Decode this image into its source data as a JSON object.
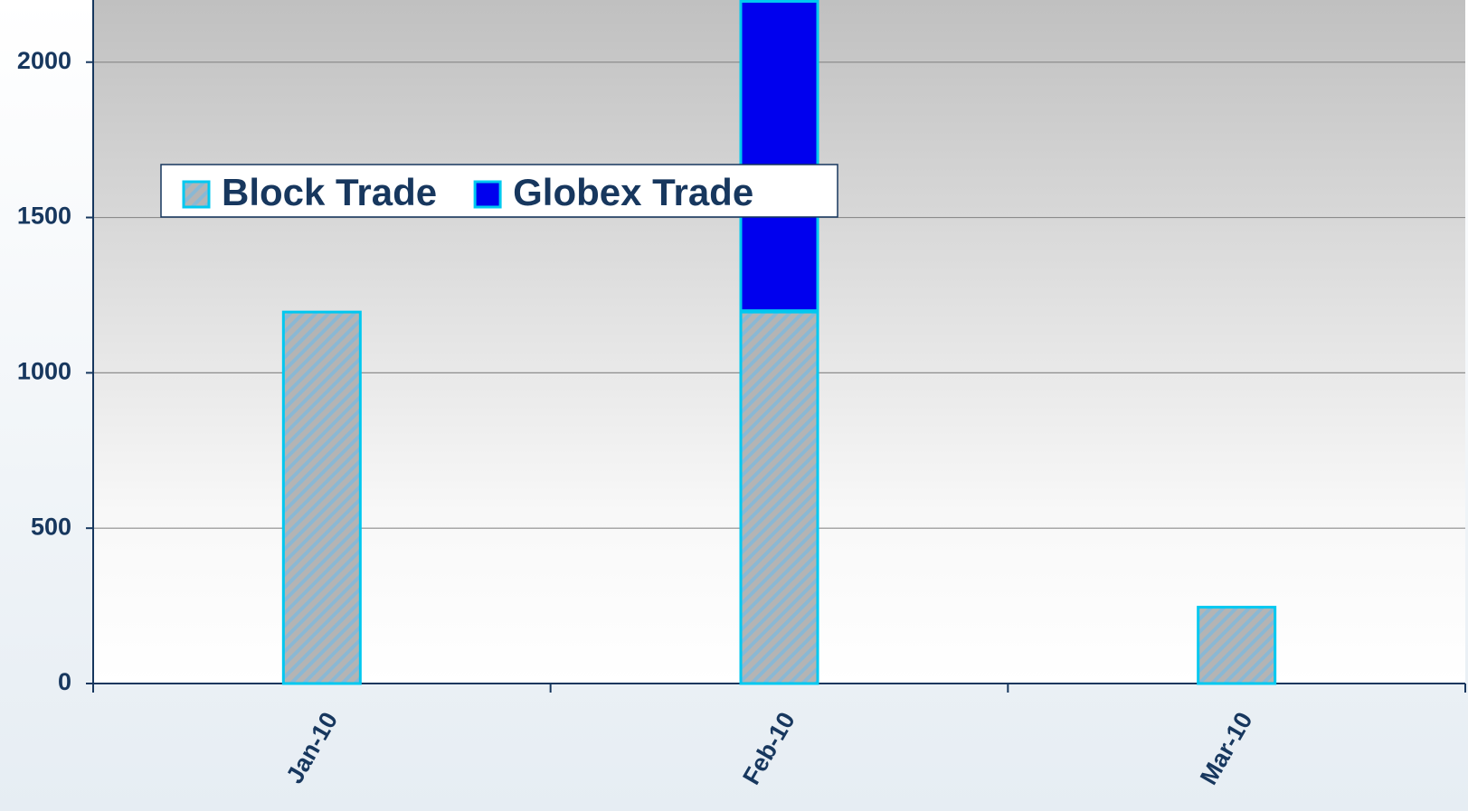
{
  "chart_data": {
    "type": "stacked-bar",
    "categories": [
      "Jan-10",
      "Feb-10",
      "Mar-10"
    ],
    "series": [
      {
        "name": "Block Trade",
        "color": "#b4b4b4",
        "values": [
          1200,
          1200,
          250
        ]
      },
      {
        "name": "Globex Trade",
        "color": "#0000ee",
        "values": [
          null,
          1000,
          null
        ]
      }
    ],
    "ylim": [
      0,
      2200
    ],
    "yticks": [
      0,
      500,
      1000,
      1500,
      2000
    ],
    "grid": true,
    "legend": "top-left"
  }
}
